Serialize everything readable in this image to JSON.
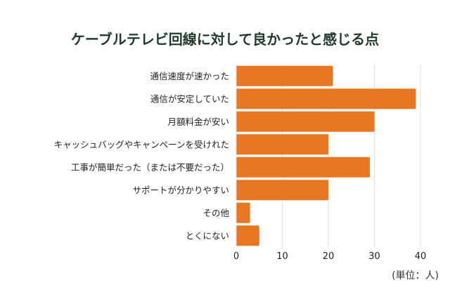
{
  "chart_data": {
    "type": "bar",
    "orientation": "horizontal",
    "title": "ケーブルテレビ回線に対して良かったと感じる点",
    "categories": [
      "通信速度が速かった",
      "通信が安定していた",
      "月額料金が安い",
      "キャッシュバッグやキャンペーンを受けれた",
      "工事が簡単だった（または不要だった）",
      "サポートが分かりやすい",
      "その他",
      "とくにない"
    ],
    "values": [
      21,
      39,
      30,
      20,
      29,
      20,
      3,
      5
    ],
    "xlim": [
      0,
      40
    ],
    "xticks": [
      "0",
      "10",
      "20",
      "30",
      "40"
    ],
    "unit_label": "(単位：人)",
    "grid": "vertical",
    "bar_color": "#e87722",
    "title_color": "#1f3a2c"
  }
}
